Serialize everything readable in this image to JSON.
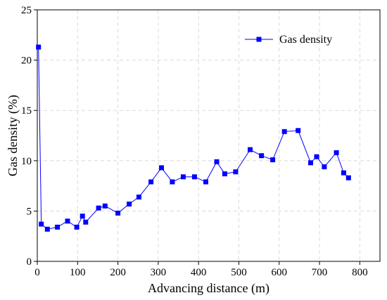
{
  "chart_data": {
    "type": "line",
    "title": "",
    "xlabel": "Advancing distance (m)",
    "ylabel": "Gas density (%)",
    "xlim": [
      0,
      850
    ],
    "ylim": [
      0,
      25
    ],
    "xticks": [
      0,
      100,
      200,
      300,
      400,
      500,
      600,
      700,
      800
    ],
    "yticks": [
      0,
      5,
      10,
      15,
      20,
      25
    ],
    "grid": true,
    "legend_position": "top-right",
    "series": [
      {
        "name": "Gas density",
        "color": "#0000ff",
        "marker": "square",
        "x": [
          3,
          10,
          25,
          50,
          75,
          98,
          112,
          120,
          152,
          168,
          200,
          228,
          252,
          282,
          308,
          335,
          362,
          390,
          418,
          445,
          465,
          492,
          528,
          556,
          584,
          613,
          647,
          678,
          693,
          712,
          742,
          760,
          772
        ],
        "y": [
          21.3,
          3.7,
          3.2,
          3.4,
          4.0,
          3.4,
          4.5,
          3.9,
          5.3,
          5.5,
          4.8,
          5.7,
          6.4,
          7.9,
          9.3,
          7.9,
          8.4,
          8.4,
          7.9,
          9.9,
          8.7,
          8.9,
          11.1,
          10.5,
          10.1,
          12.9,
          13.0,
          9.8,
          10.4,
          9.4,
          10.8,
          8.8,
          8.3
        ]
      }
    ]
  }
}
